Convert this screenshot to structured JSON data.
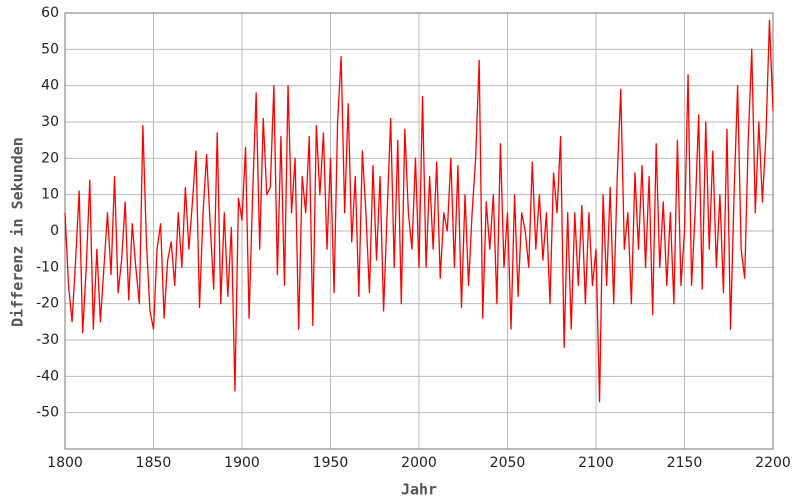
{
  "chart_data": {
    "type": "line",
    "x_label": "Jahr",
    "y_label": "Differenz in Sekunden",
    "x": [
      1800,
      1802,
      1804,
      1806,
      1808,
      1810,
      1812,
      1814,
      1816,
      1818,
      1820,
      1822,
      1824,
      1826,
      1828,
      1830,
      1832,
      1834,
      1836,
      1838,
      1840,
      1842,
      1844,
      1846,
      1848,
      1850,
      1852,
      1854,
      1856,
      1858,
      1860,
      1862,
      1864,
      1866,
      1868,
      1870,
      1872,
      1874,
      1876,
      1878,
      1880,
      1882,
      1884,
      1886,
      1888,
      1890,
      1892,
      1894,
      1896,
      1898,
      1900,
      1902,
      1904,
      1906,
      1908,
      1910,
      1912,
      1914,
      1916,
      1918,
      1920,
      1922,
      1924,
      1926,
      1928,
      1930,
      1932,
      1934,
      1936,
      1938,
      1940,
      1942,
      1944,
      1946,
      1948,
      1950,
      1952,
      1954,
      1956,
      1958,
      1960,
      1962,
      1964,
      1966,
      1968,
      1970,
      1972,
      1974,
      1976,
      1978,
      1980,
      1982,
      1984,
      1986,
      1988,
      1990,
      1992,
      1994,
      1996,
      1998,
      2000,
      2002,
      2004,
      2006,
      2008,
      2010,
      2012,
      2014,
      2016,
      2018,
      2020,
      2022,
      2024,
      2026,
      2028,
      2030,
      2032,
      2034,
      2036,
      2038,
      2040,
      2042,
      2044,
      2046,
      2048,
      2050,
      2052,
      2054,
      2056,
      2058,
      2060,
      2062,
      2064,
      2066,
      2068,
      2070,
      2072,
      2074,
      2076,
      2078,
      2080,
      2082,
      2084,
      2086,
      2088,
      2090,
      2092,
      2094,
      2096,
      2098,
      2100,
      2102,
      2104,
      2106,
      2108,
      2110,
      2112,
      2114,
      2116,
      2118,
      2120,
      2122,
      2124,
      2126,
      2128,
      2130,
      2132,
      2134,
      2136,
      2138,
      2140,
      2142,
      2144,
      2146,
      2148,
      2150,
      2152,
      2154,
      2156,
      2158,
      2160,
      2162,
      2164,
      2166,
      2168,
      2170,
      2172,
      2174,
      2176,
      2178,
      2180,
      2182,
      2184,
      2186,
      2188,
      2190,
      2192,
      2194,
      2196,
      2198,
      2200
    ],
    "series": [
      {
        "color": "#ff0000",
        "values": [
          5,
          -15,
          -25,
          -8,
          11,
          -28,
          -10,
          14,
          -27,
          -5,
          -25,
          -10,
          5,
          -12,
          15,
          -17,
          -8,
          8,
          -19,
          2,
          -10,
          -20,
          29,
          -3,
          -22,
          -27,
          -5,
          2,
          -24,
          -8,
          -3,
          -15,
          5,
          -10,
          12,
          -5,
          8,
          22,
          -21,
          5,
          21,
          2,
          -16,
          27,
          -20,
          5,
          -18,
          1,
          -44,
          9,
          3,
          23,
          -24,
          10,
          38,
          -5,
          31,
          10,
          12,
          40,
          -12,
          26,
          -15,
          40,
          5,
          20,
          -27,
          15,
          5,
          26,
          -26,
          29,
          10,
          27,
          -5,
          20,
          -17,
          30,
          48,
          5,
          35,
          -3,
          15,
          -18,
          22,
          5,
          -17,
          18,
          -8,
          15,
          -22,
          5,
          31,
          -10,
          25,
          -20,
          28,
          5,
          -5,
          20,
          -10,
          37,
          -10,
          15,
          -5,
          19,
          -13,
          5,
          0,
          20,
          -10,
          18,
          -21,
          10,
          -15,
          5,
          20,
          47,
          -24,
          8,
          -5,
          10,
          -20,
          24,
          -10,
          5,
          -27,
          10,
          -18,
          5,
          0,
          -10,
          19,
          -5,
          10,
          -8,
          5,
          -20,
          16,
          5,
          26,
          -32,
          5,
          -27,
          5,
          -15,
          7,
          -20,
          5,
          -15,
          -5,
          -47,
          10,
          -15,
          12,
          -20,
          15,
          39,
          -5,
          5,
          -20,
          16,
          -5,
          18,
          -10,
          15,
          -23,
          24,
          -10,
          8,
          -15,
          5,
          -20,
          25,
          -15,
          0,
          43,
          -15,
          5,
          32,
          -16,
          30,
          -5,
          22,
          -10,
          10,
          -17,
          28,
          -27,
          10,
          40,
          -5,
          -13,
          25,
          50,
          5,
          30,
          8,
          26,
          58,
          33
        ]
      }
    ],
    "xlim": [
      1800,
      2200
    ],
    "xticks": [
      1800,
      1850,
      1900,
      1950,
      2000,
      2050,
      2100,
      2150,
      2200
    ],
    "ylim": [
      -60,
      60
    ],
    "yticks": [
      60,
      50,
      40,
      30,
      20,
      10,
      0,
      -10,
      -20,
      -30,
      -40,
      -50
    ],
    "grid": true
  }
}
